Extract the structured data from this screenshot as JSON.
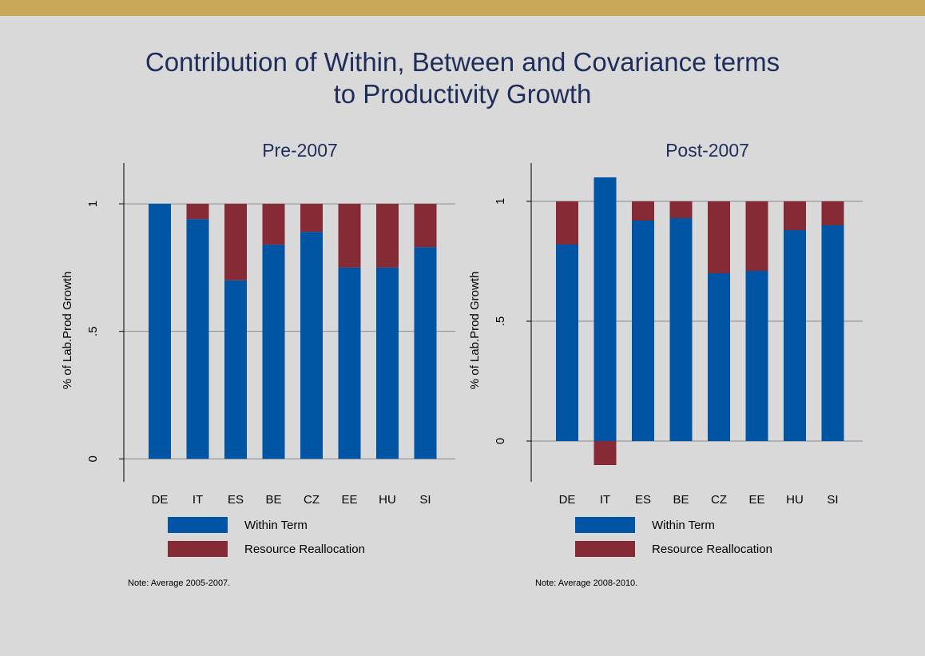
{
  "slide": {
    "title_line1": "Contribution of Within, Between and Covariance terms",
    "title_line2": "to Productivity Growth"
  },
  "colors": {
    "within": "#0054a4",
    "reallocation": "#862b35",
    "title": "#1f2d5a",
    "background": "#d9d9d9",
    "top_bar": "#c9a85a"
  },
  "chart_data": [
    {
      "type": "bar",
      "stacked": true,
      "title": "Pre-2007",
      "ylabel": "% of Lab.Prod Growth",
      "xlabel": "",
      "categories": [
        "DE",
        "IT",
        "ES",
        "BE",
        "CZ",
        "EE",
        "HU",
        "SI"
      ],
      "series": [
        {
          "name": "Within Term",
          "values": [
            1.0,
            0.94,
            0.7,
            0.84,
            0.89,
            0.75,
            0.75,
            0.83
          ]
        },
        {
          "name": "Resource Reallocation",
          "values": [
            0.0,
            0.06,
            0.3,
            0.16,
            0.11,
            0.25,
            0.25,
            0.17
          ]
        }
      ],
      "ylim": [
        -0.09,
        1.16
      ],
      "yticks": [
        0,
        0.5,
        1
      ],
      "ytick_labels": [
        "0",
        ".5",
        "1"
      ],
      "grid": true,
      "legend_position": "bottom",
      "note": "Note: Average 2005-2007."
    },
    {
      "type": "bar",
      "stacked": true,
      "title": "Post-2007",
      "ylabel": "% of Lab.Prod Growth",
      "xlabel": "",
      "categories": [
        "DE",
        "IT",
        "ES",
        "BE",
        "CZ",
        "EE",
        "HU",
        "SI"
      ],
      "series": [
        {
          "name": "Within Term",
          "values": [
            0.82,
            1.1,
            0.92,
            0.93,
            0.7,
            0.71,
            0.88,
            0.9
          ]
        },
        {
          "name": "Resource Reallocation",
          "values": [
            0.18,
            -0.1,
            0.08,
            0.07,
            0.3,
            0.29,
            0.12,
            0.1
          ]
        }
      ],
      "ylim": [
        -0.17,
        1.16
      ],
      "yticks": [
        0,
        0.5,
        1
      ],
      "ytick_labels": [
        "0",
        ".5",
        "1"
      ],
      "grid": true,
      "legend_position": "bottom",
      "note": "Note: Average 2008-2010."
    }
  ]
}
